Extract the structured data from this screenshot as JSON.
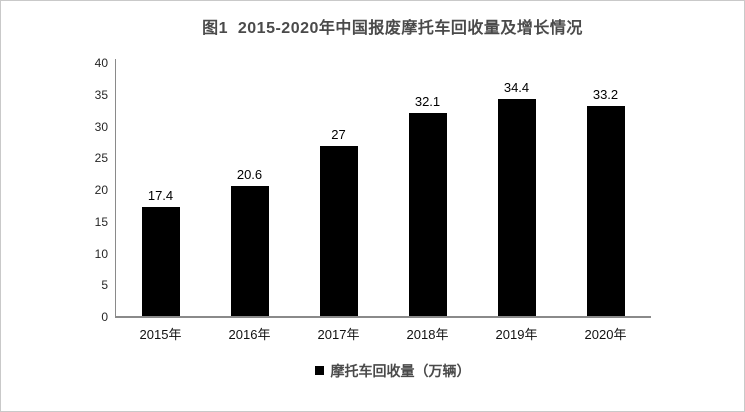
{
  "chart_data": {
    "type": "bar",
    "title": "图1  2015-2020年中国报废摩托车回收量及增长情况",
    "categories": [
      "2015年",
      "2016年",
      "2017年",
      "2018年",
      "2019年",
      "2020年"
    ],
    "values": [
      17.4,
      20.6,
      27,
      32.1,
      34.4,
      33.2
    ],
    "value_labels": [
      "17.4",
      "20.6",
      "27",
      "32.1",
      "34.4",
      "33.2"
    ],
    "series_name": "摩托车回收量（万辆）",
    "legend": "摩托车回收量（万辆）",
    "legend_position": "bottom",
    "xlabel": "",
    "ylabel": "",
    "ylim": [
      0,
      40
    ],
    "yticks": [
      0,
      5,
      10,
      15,
      20,
      25,
      30,
      35,
      40
    ],
    "grid": false,
    "bar_color": "#000000",
    "axis_color": "#8a8a8a",
    "title_color": "#4a4a4a",
    "background_color": "#ffffff"
  }
}
